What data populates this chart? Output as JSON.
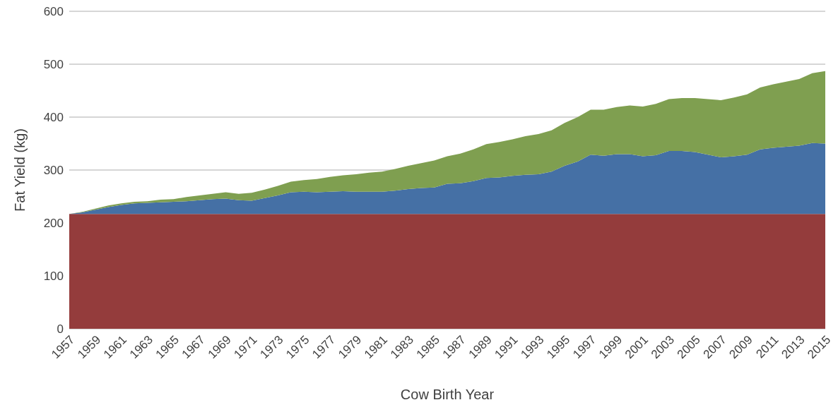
{
  "chart_data": {
    "type": "area",
    "xlabel": "Cow Birth Year",
    "ylabel": "Fat Yield (kg)",
    "stacked": true,
    "grid": "y",
    "legend": false,
    "x": [
      1957,
      1958,
      1959,
      1960,
      1961,
      1962,
      1963,
      1964,
      1965,
      1966,
      1967,
      1968,
      1969,
      1970,
      1971,
      1972,
      1973,
      1974,
      1975,
      1976,
      1977,
      1978,
      1979,
      1980,
      1981,
      1982,
      1983,
      1984,
      1985,
      1986,
      1987,
      1988,
      1989,
      1990,
      1991,
      1992,
      1993,
      1994,
      1995,
      1996,
      1997,
      1998,
      1999,
      2000,
      2001,
      2002,
      2003,
      2004,
      2005,
      2006,
      2007,
      2008,
      2009,
      2010,
      2011,
      2012,
      2013,
      2014,
      2015
    ],
    "xlim": [
      1957,
      2015
    ],
    "xticks": [
      1957,
      1959,
      1961,
      1963,
      1965,
      1967,
      1969,
      1971,
      1973,
      1975,
      1977,
      1979,
      1981,
      1983,
      1985,
      1987,
      1989,
      1991,
      1993,
      1995,
      1997,
      1999,
      2001,
      2003,
      2005,
      2007,
      2009,
      2011,
      2013,
      2015
    ],
    "ylim": [
      0,
      600
    ],
    "yticks": [
      0,
      100,
      200,
      300,
      400,
      500,
      600
    ],
    "series": [
      {
        "color": "#943c3c",
        "values": [
          217,
          217,
          217,
          217,
          217,
          217,
          217,
          217,
          217,
          217,
          217,
          217,
          217,
          217,
          217,
          217,
          217,
          217,
          217,
          217,
          217,
          217,
          217,
          217,
          217,
          217,
          217,
          217,
          217,
          217,
          217,
          217,
          217,
          217,
          217,
          217,
          217,
          217,
          217,
          217,
          217,
          217,
          217,
          217,
          217,
          217,
          217,
          217,
          217,
          217,
          217,
          217,
          217,
          217,
          217,
          217,
          217,
          217,
          217
        ]
      },
      {
        "color": "#4570a5",
        "values": [
          0,
          3,
          8,
          13,
          17,
          20,
          21,
          22,
          23,
          24,
          26,
          28,
          29,
          26,
          25,
          30,
          35,
          41,
          42,
          41,
          42,
          43,
          42,
          42,
          42,
          44,
          47,
          49,
          50,
          57,
          58,
          62,
          68,
          69,
          72,
          74,
          75,
          80,
          91,
          99,
          112,
          110,
          113,
          113,
          109,
          111,
          119,
          119,
          117,
          112,
          107,
          109,
          112,
          122,
          125,
          127,
          129,
          134,
          133
        ]
      },
      {
        "color": "#7f9f50",
        "values": [
          0,
          1,
          2,
          3,
          3,
          3,
          3,
          5,
          5,
          8,
          9,
          10,
          12,
          12,
          15,
          16,
          18,
          20,
          22,
          25,
          28,
          30,
          33,
          36,
          38,
          41,
          44,
          47,
          51,
          52,
          56,
          60,
          64,
          67,
          69,
          73,
          76,
          78,
          81,
          84,
          85,
          87,
          89,
          92,
          94,
          97,
          98,
          100,
          102,
          105,
          108,
          111,
          114,
          117,
          120,
          123,
          126,
          132,
          137
        ]
      }
    ]
  }
}
